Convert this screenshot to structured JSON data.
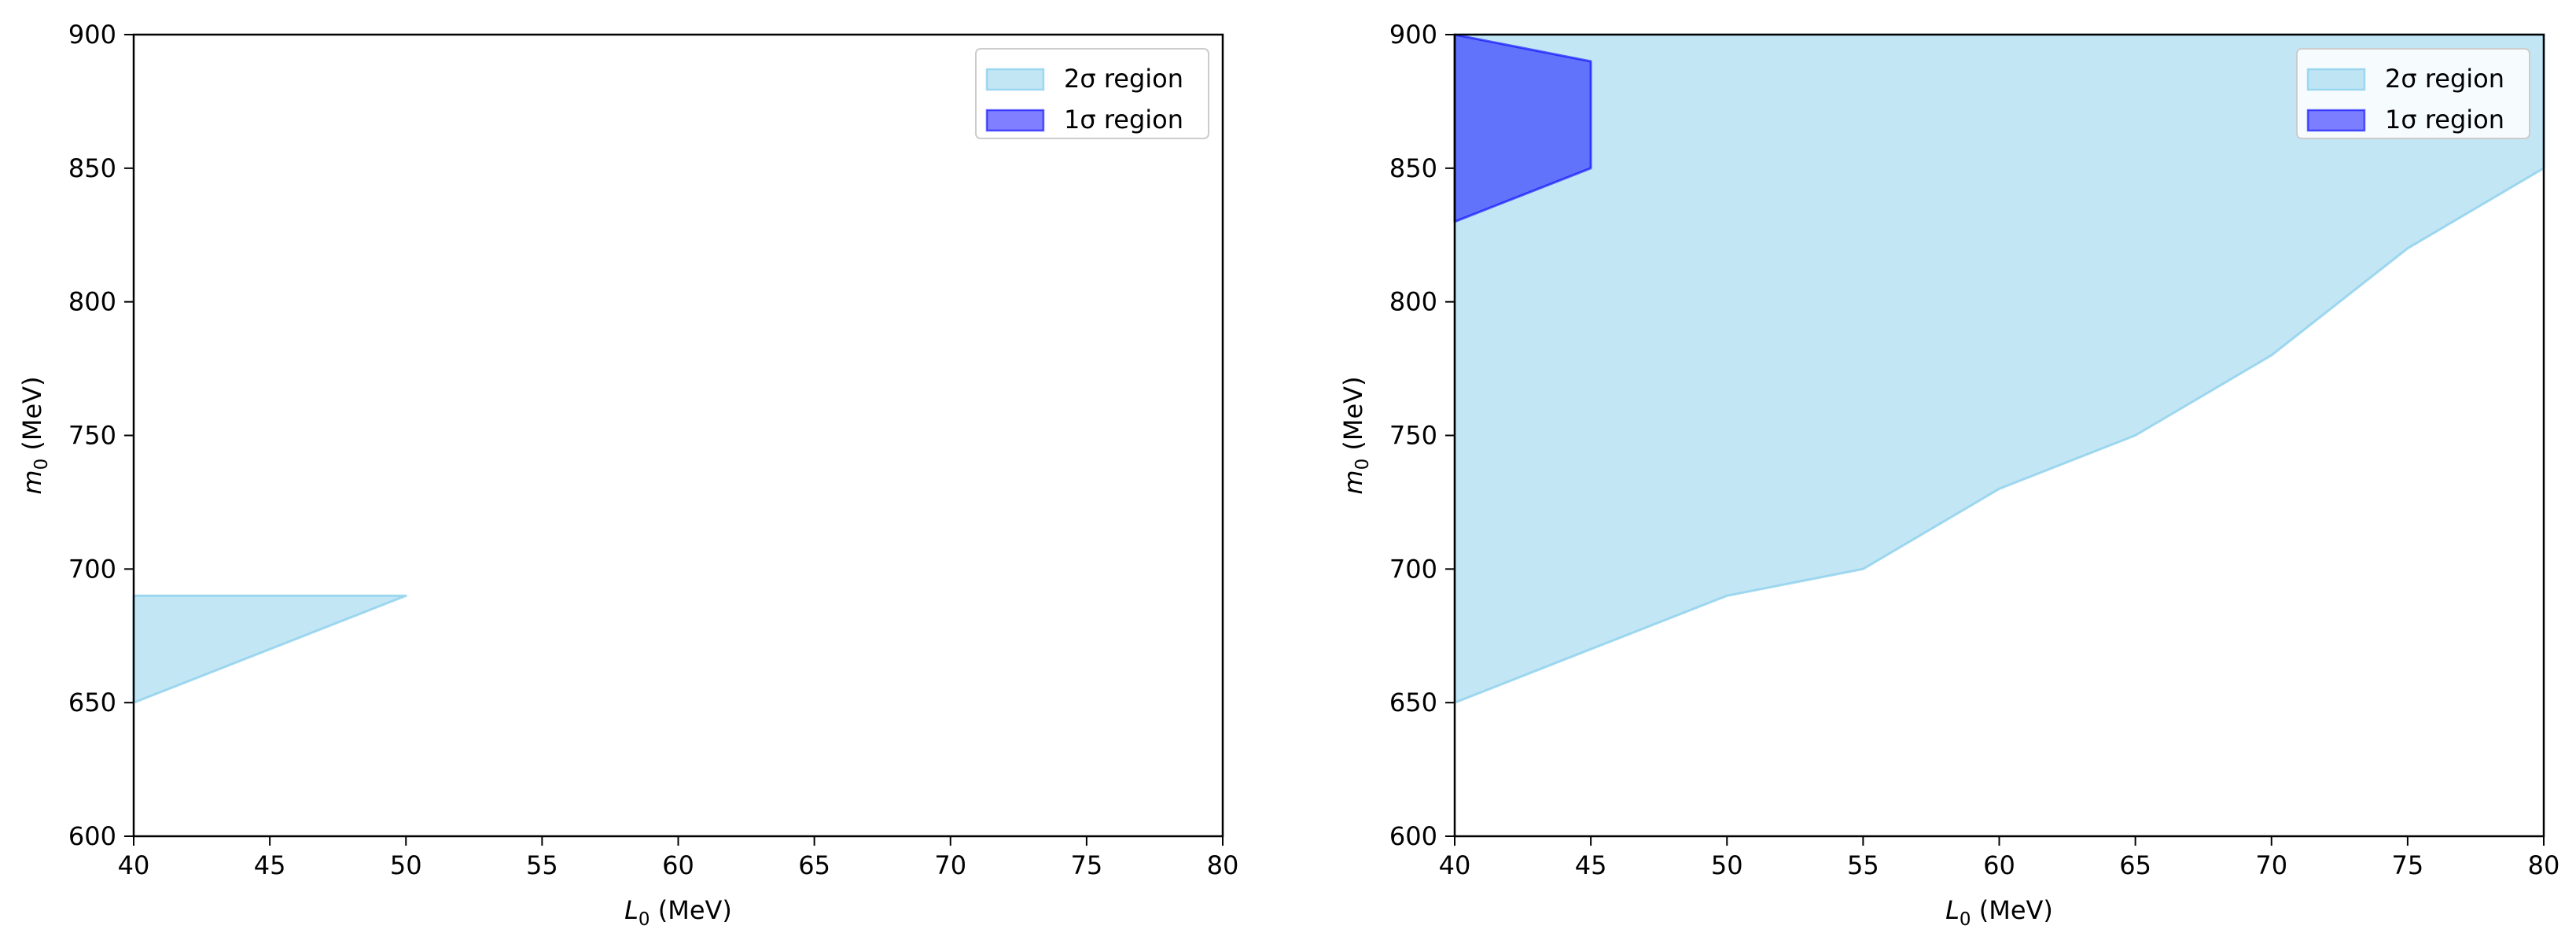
{
  "chart_data": [
    {
      "type": "area",
      "xlabel": "L0 (MeV)",
      "xlabel_main": "L",
      "xlabel_sub": "0",
      "xlabel_unit": " (MeV)",
      "ylabel": "m0 (MeV)",
      "ylabel_main": "m",
      "ylabel_sub": "0",
      "ylabel_unit": " (MeV)",
      "xlim": [
        40,
        80
      ],
      "ylim": [
        600,
        900
      ],
      "xticks": [
        "40",
        "45",
        "50",
        "55",
        "60",
        "65",
        "70",
        "75",
        "80"
      ],
      "yticks": [
        "600",
        "650",
        "700",
        "750",
        "800",
        "850",
        "900"
      ],
      "grid": false,
      "legend_position": "top-right",
      "series": [
        {
          "name": "2σ region",
          "color": "#87ceeb",
          "polygon": [
            [
              40,
              650
            ],
            [
              50,
              690
            ],
            [
              40,
              690
            ]
          ]
        },
        {
          "name": "1σ region",
          "color": "#0000ff",
          "polygon": []
        }
      ]
    },
    {
      "type": "area",
      "xlabel": "L0 (MeV)",
      "xlabel_main": "L",
      "xlabel_sub": "0",
      "xlabel_unit": " (MeV)",
      "ylabel": "m0 (MeV)",
      "ylabel_main": "m",
      "ylabel_sub": "0",
      "ylabel_unit": " (MeV)",
      "xlim": [
        40,
        80
      ],
      "ylim": [
        600,
        900
      ],
      "xticks": [
        "40",
        "45",
        "50",
        "55",
        "60",
        "65",
        "70",
        "75",
        "80"
      ],
      "yticks": [
        "600",
        "650",
        "700",
        "750",
        "800",
        "850",
        "900"
      ],
      "grid": false,
      "legend_position": "top-right",
      "series": [
        {
          "name": "2σ region",
          "color": "#87ceeb",
          "polygon": [
            [
              40,
              650
            ],
            [
              45,
              670
            ],
            [
              50,
              690
            ],
            [
              55,
              700
            ],
            [
              60,
              730
            ],
            [
              65,
              750
            ],
            [
              70,
              780
            ],
            [
              75,
              820
            ],
            [
              80,
              850
            ],
            [
              80,
              900
            ],
            [
              40,
              900
            ]
          ]
        },
        {
          "name": "1σ region",
          "color": "#0000ff",
          "polygon": [
            [
              40,
              830
            ],
            [
              45,
              850
            ],
            [
              45,
              890
            ],
            [
              40,
              900
            ]
          ]
        }
      ]
    }
  ]
}
